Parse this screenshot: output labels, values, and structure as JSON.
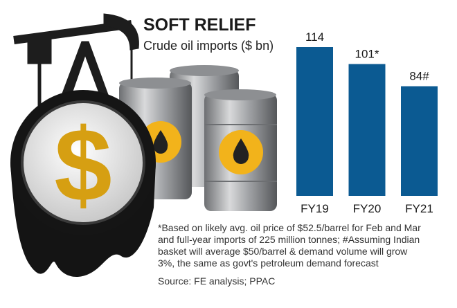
{
  "chart_data": {
    "type": "bar",
    "title": "SOFT RELIEF",
    "subtitle": "Crude oil imports ($ bn)",
    "categories": [
      "FY19",
      "FY20",
      "FY21"
    ],
    "values": [
      114,
      101,
      84
    ],
    "value_labels": [
      "114",
      "101*",
      "84#"
    ],
    "color": "#0b5a92",
    "footnote": [
      "*Based on likely avg. oil price of $52.5/barrel for Feb and Mar",
      "and full-year imports of 225 million tonnes; #Assuming Indian",
      "basket will average $50/barrel & demand volume will grow",
      "3%, the same as govt's petroleum demand forecast"
    ],
    "source": "Source: FE analysis; PPAC",
    "coin_symbol": "$"
  }
}
